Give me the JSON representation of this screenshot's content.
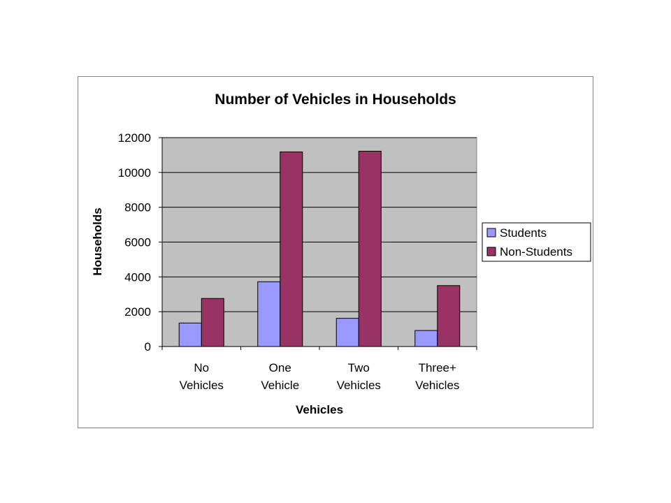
{
  "chart_data": {
    "type": "bar",
    "title": "Number of Vehicles in Households",
    "xlabel": "Vehicles",
    "ylabel": "Households",
    "categories": [
      [
        "No",
        "Vehicles"
      ],
      [
        "One",
        "Vehicle"
      ],
      [
        "Two",
        "Vehicles"
      ],
      [
        "Three+",
        "Vehicles"
      ]
    ],
    "series": [
      {
        "name": "Students",
        "color": "#9999ff",
        "values": [
          1350,
          3720,
          1620,
          920
        ]
      },
      {
        "name": "Non-Students",
        "color": "#993366",
        "values": [
          2760,
          11180,
          11220,
          3500
        ]
      }
    ],
    "ylim": [
      0,
      12000
    ],
    "yticks": [
      0,
      2000,
      4000,
      6000,
      8000,
      10000,
      12000
    ],
    "grid": true,
    "plot_background": "#c0c0c0",
    "legend_position": "right"
  }
}
